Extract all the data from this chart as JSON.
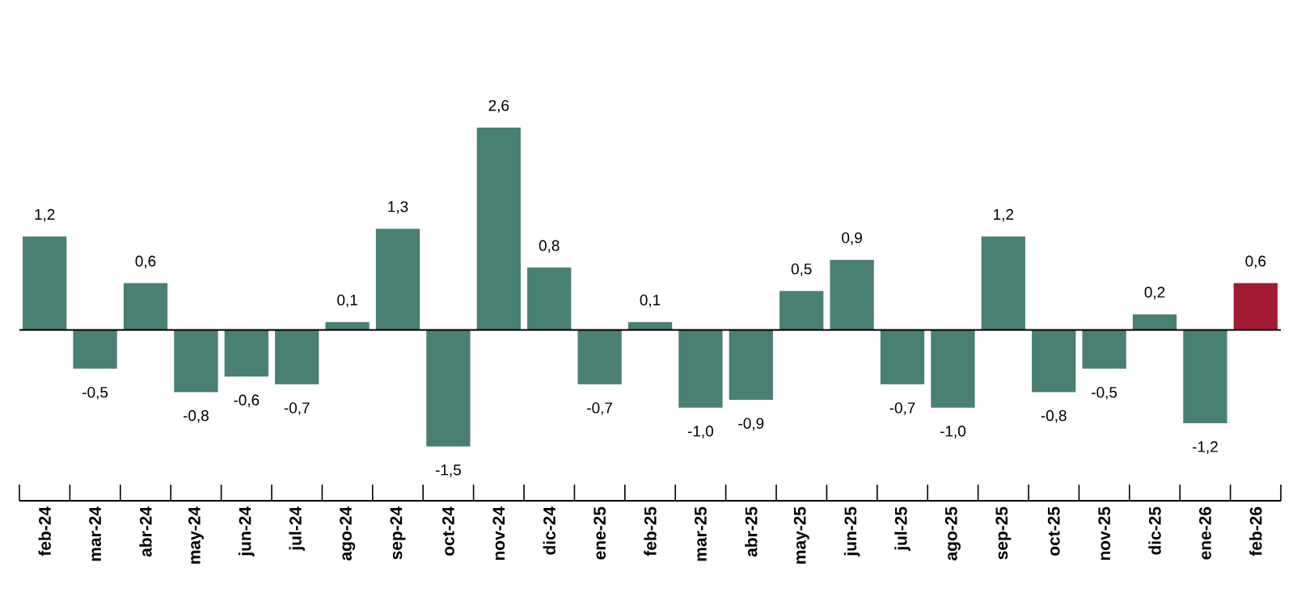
{
  "chart_data": {
    "type": "bar",
    "categories": [
      "feb-24",
      "mar-24",
      "abr-24",
      "may-24",
      "jun-24",
      "jul-24",
      "ago-24",
      "sep-24",
      "oct-24",
      "nov-24",
      "dic-24",
      "ene-25",
      "feb-25",
      "mar-25",
      "abr-25",
      "may-25",
      "jun-25",
      "jul-25",
      "ago-25",
      "sep-25",
      "oct-25",
      "nov-25",
      "dic-25",
      "ene-26",
      "feb-26"
    ],
    "values": [
      1.2,
      -0.5,
      0.6,
      -0.8,
      -0.6,
      -0.7,
      0.1,
      1.3,
      -1.5,
      2.6,
      0.8,
      -0.7,
      0.1,
      -1.0,
      -0.9,
      0.5,
      0.9,
      -0.7,
      -1.0,
      1.2,
      -0.8,
      -0.5,
      0.2,
      -1.2,
      0.6
    ],
    "value_labels": [
      "1,2",
      "-0,5",
      "0,6",
      "-0,8",
      "-0,6",
      "-0,7",
      "0,1",
      "1,3",
      "-1,5",
      "2,6",
      "0,8",
      "-0,7",
      "0,1",
      "-1,0",
      "-0,9",
      "0,5",
      "0,9",
      "-0,7",
      "-1,0",
      "1,2",
      "-0,8",
      "-0,5",
      "0,2",
      "-1,2",
      "0,6"
    ],
    "colors": [
      "#4a7f74",
      "#4a7f74",
      "#4a7f74",
      "#4a7f74",
      "#4a7f74",
      "#4a7f74",
      "#4a7f74",
      "#4a7f74",
      "#4a7f74",
      "#4a7f74",
      "#4a7f74",
      "#4a7f74",
      "#4a7f74",
      "#4a7f74",
      "#4a7f74",
      "#4a7f74",
      "#4a7f74",
      "#4a7f74",
      "#4a7f74",
      "#4a7f74",
      "#4a7f74",
      "#4a7f74",
      "#4a7f74",
      "#4a7f74",
      "#a31b32"
    ]
  }
}
